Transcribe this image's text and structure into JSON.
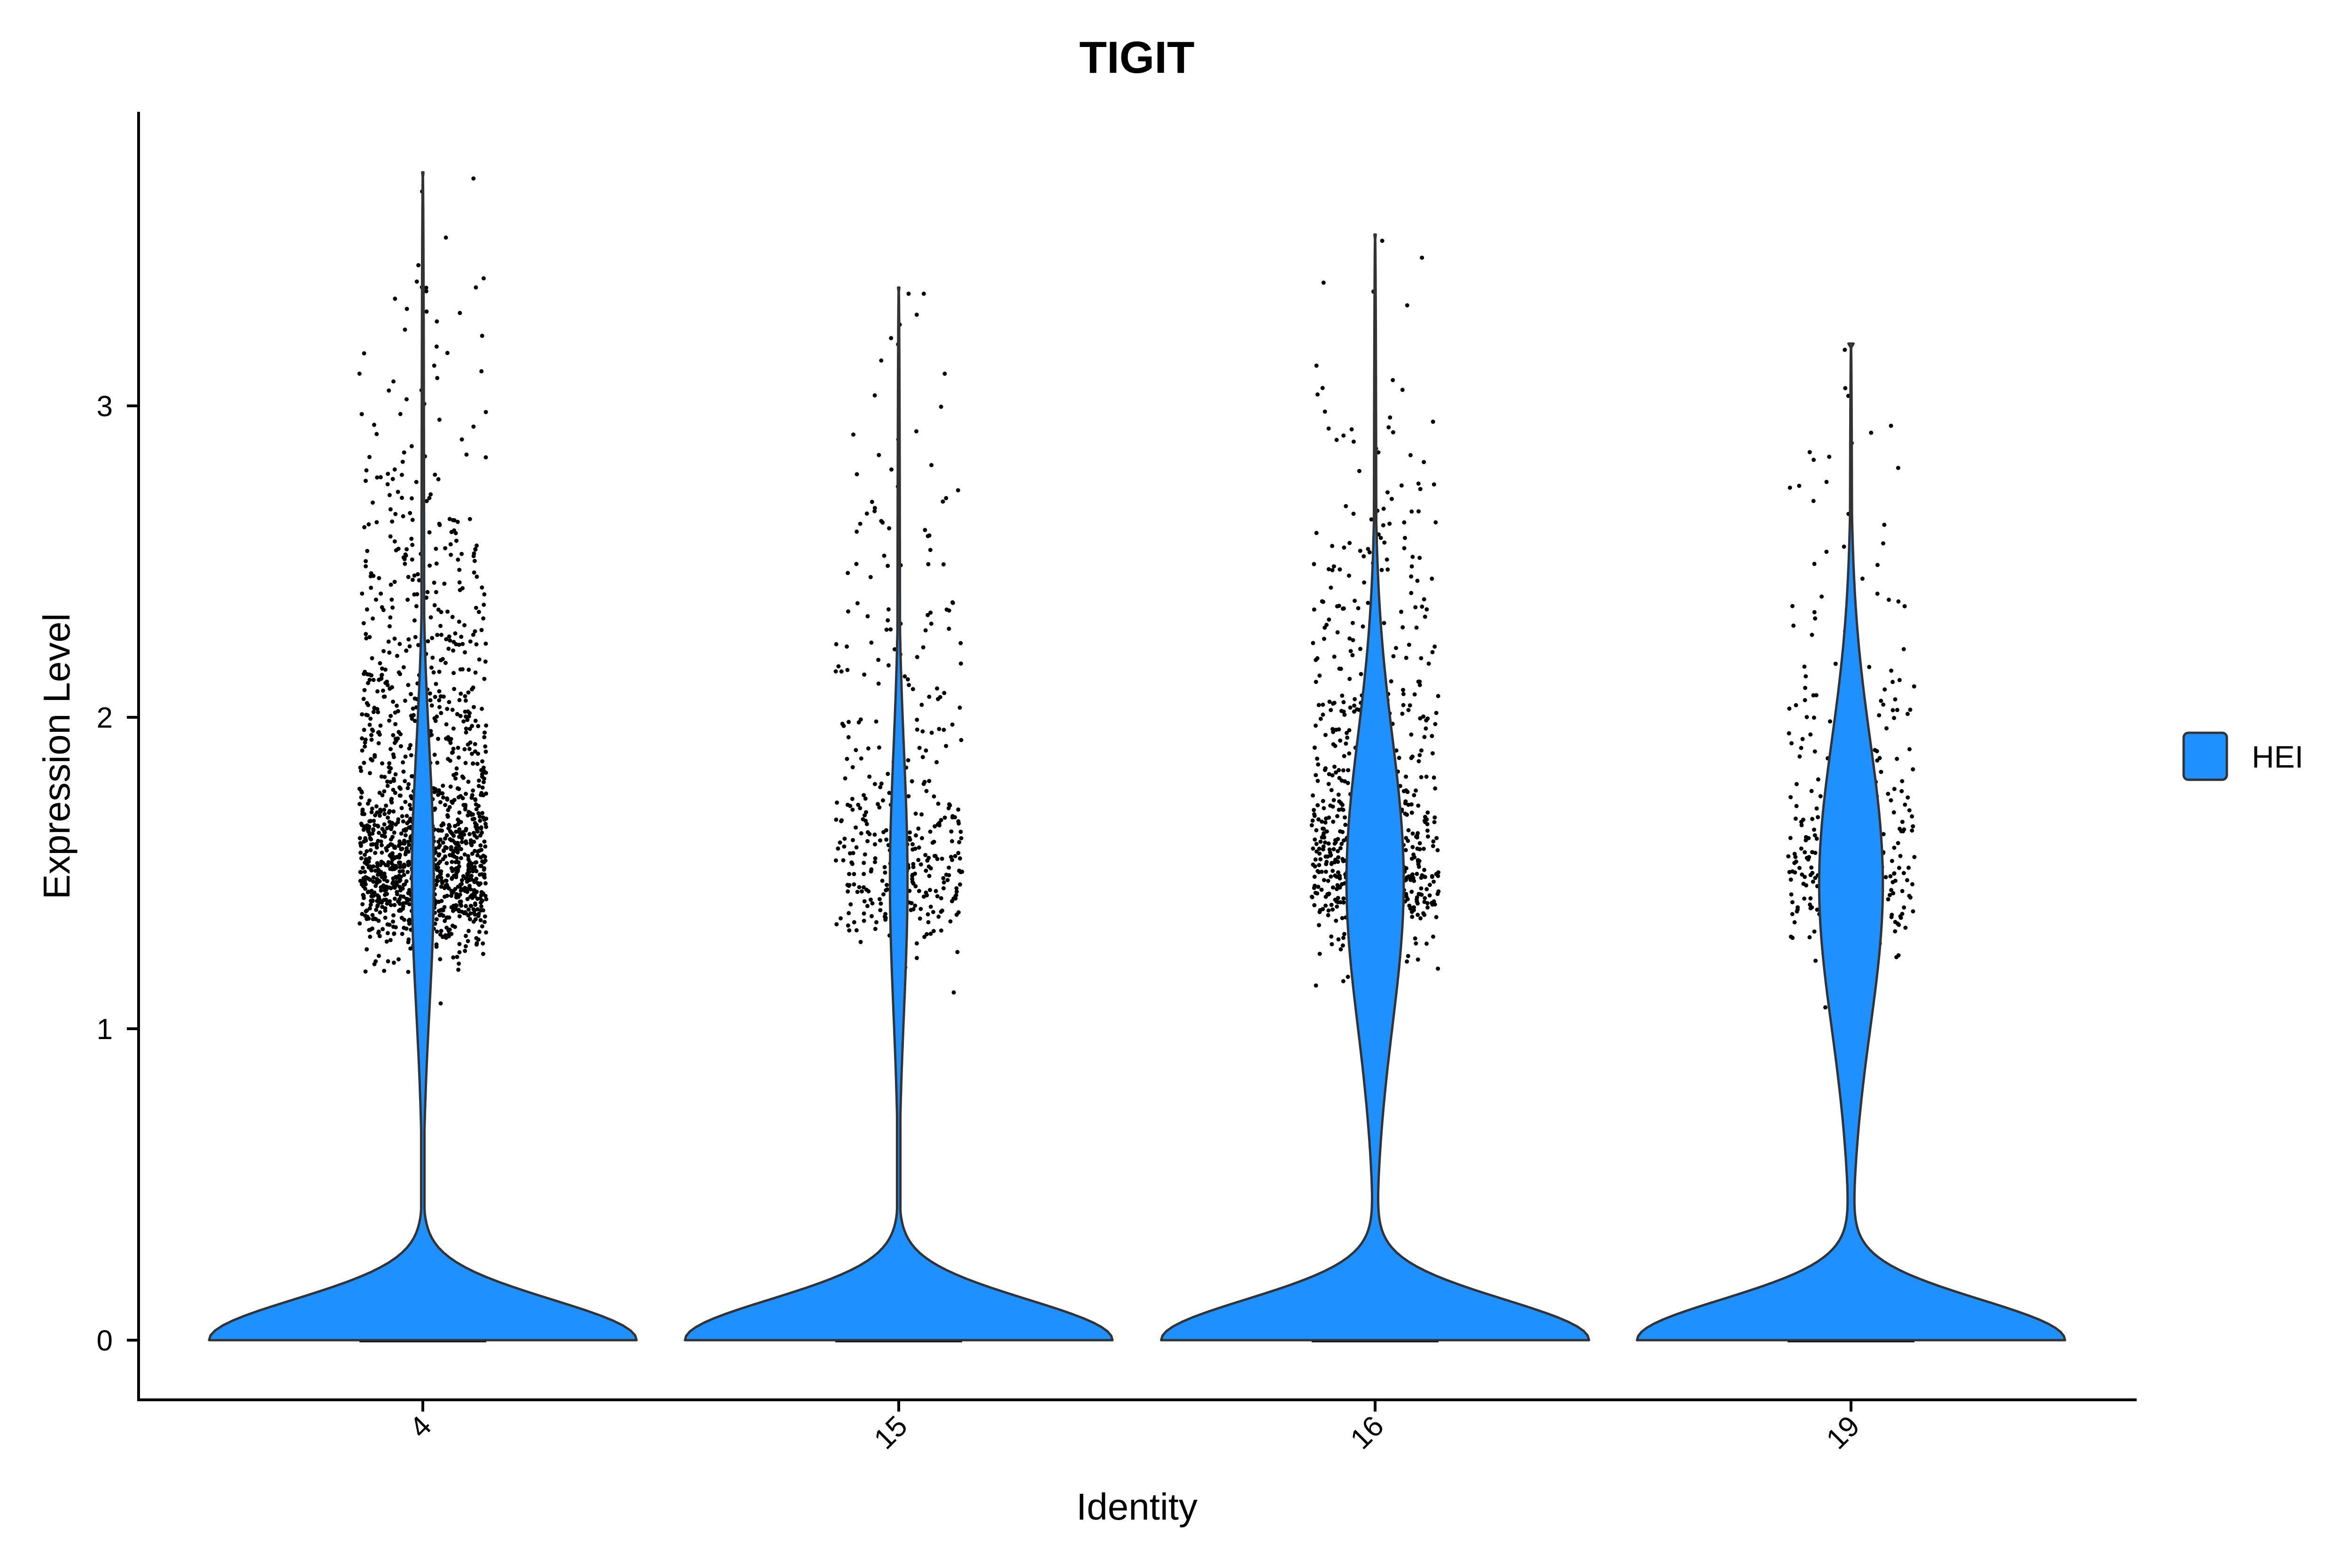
{
  "chart_data": {
    "type": "violin",
    "title": "TIGIT",
    "xlabel": "Identity",
    "ylabel": "Expression Level",
    "categories": [
      "4",
      "15",
      "16",
      "19"
    ],
    "ylim": [
      -0.19,
      3.95
    ],
    "yticks": [
      "0",
      "1",
      "2",
      "3"
    ],
    "xtick_rotation": "-45",
    "grid": false,
    "legend_position": "right",
    "series": [
      {
        "name": "HEI",
        "color": "#1E90FF",
        "violins": [
          {
            "category": "4",
            "max": 3.75,
            "zero_mode_halfwidth": 0.45,
            "upper_mode_center": 1.5,
            "upper_mode_halfwidth": 0.055,
            "point_count": 1500,
            "point_min": 0.88
          },
          {
            "category": "15",
            "max": 3.38,
            "zero_mode_halfwidth": 0.45,
            "upper_mode_center": 1.5,
            "upper_mode_halfwidth": 0.045,
            "point_count": 380,
            "point_min": 0.67
          },
          {
            "category": "16",
            "max": 3.55,
            "zero_mode_halfwidth": 0.45,
            "upper_mode_center": 1.5,
            "upper_mode_halfwidth": 0.145,
            "point_count": 750,
            "point_min": 1.1
          },
          {
            "category": "19",
            "max": 3.2,
            "zero_mode_halfwidth": 0.45,
            "upper_mode_center": 1.5,
            "upper_mode_halfwidth": 0.165,
            "point_count": 320,
            "point_min": 0.78
          }
        ]
      }
    ]
  }
}
